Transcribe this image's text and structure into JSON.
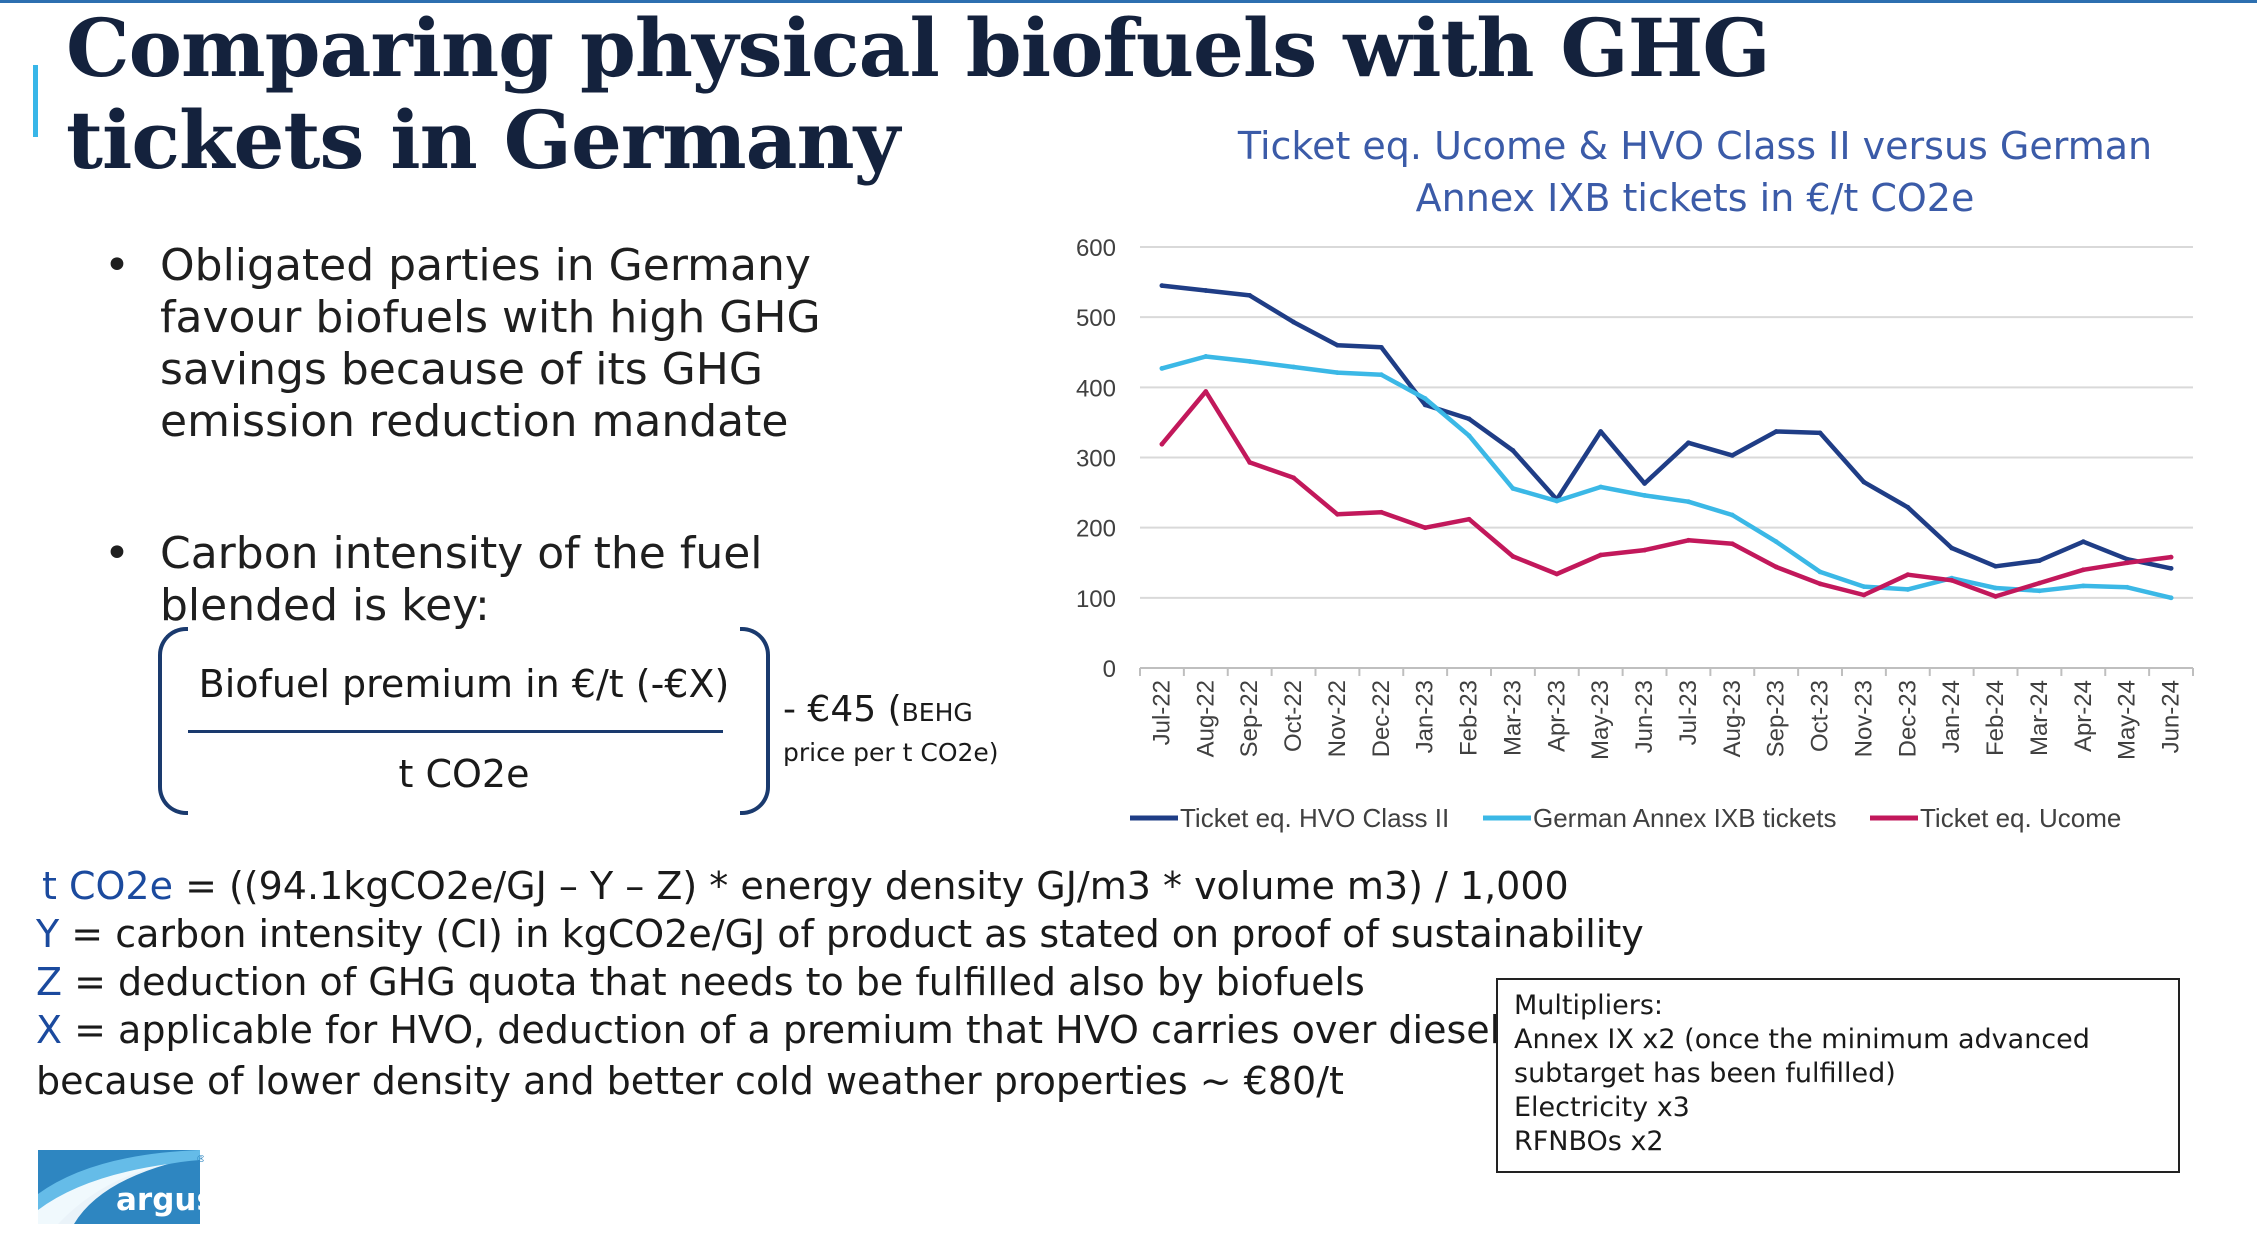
{
  "title": "Comparing physical biofuels with GHG tickets in Germany",
  "bullets": [
    "Obligated parties in Germany favour biofuels with high GHG savings because of its GHG emission reduction mandate",
    "Carbon intensity of the fuel blended is key:"
  ],
  "bullet_symbol": "•",
  "fraction": {
    "numerator": "Biofuel premium in €/t (-€X)",
    "denominator": "t CO2e",
    "minus_value": "- €45 (",
    "beh_label": "BEHG",
    "price_note": "price per t CO2e)"
  },
  "definitions": [
    {
      "var": "t CO2e",
      "text": " = ((94.1kgCO2e/GJ – Y – Z) * energy density GJ/m3 * volume m3) / 1,000"
    },
    {
      "var": "Y",
      "text": " = carbon intensity (CI) in kgCO2e/GJ of product as stated on proof of sustainability"
    },
    {
      "var": "Z",
      "text": " = deduction of GHG quota that needs to be fulfilled also by biofuels"
    },
    {
      "var": "X",
      "text": " = applicable for HVO, deduction of a premium that HVO carries over diesel"
    },
    {
      "var": "",
      "text": "because of lower density and better cold weather properties ~ €80/t"
    }
  ],
  "multipliers": [
    "Multipliers:",
    "Annex IX x2 (once the minimum advanced subtarget has been fulfilled)",
    "Electricity x3",
    "RFNBOs x2"
  ],
  "logo_text": "argus",
  "logo_mark": "®",
  "colors": {
    "title": "#14223d",
    "accent": "#38b6e8",
    "chart_title": "#3b5ba8",
    "hvo": "#1f3d86",
    "annex": "#3bb8e6",
    "ucome": "#c2185b"
  },
  "chart_data": {
    "type": "line",
    "title": "Ticket eq. Ucome & HVO Class II versus German Annex IXB tickets in €/t CO2e",
    "categories": [
      "Jul-22",
      "Aug-22",
      "Sep-22",
      "Oct-22",
      "Nov-22",
      "Dec-22",
      "Jan-23",
      "Feb-23",
      "Mar-23",
      "Apr-23",
      "May-23",
      "Jun-23",
      "Jul-23",
      "Aug-23",
      "Sep-23",
      "Oct-23",
      "Nov-23",
      "Dec-23",
      "Jan-24",
      "Feb-24",
      "Mar-24",
      "Apr-24",
      "May-24",
      "Jun-24"
    ],
    "yticks": [
      "600",
      "500",
      "400",
      "300",
      "200",
      "100",
      "0"
    ],
    "ylim": [
      0,
      600
    ],
    "grid": true,
    "legend_position": "bottom",
    "series": [
      {
        "name": "Ticket eq. HVO Class II",
        "color": "#1f3d86",
        "values": [
          545,
          538,
          531,
          493,
          460,
          457,
          375,
          355,
          310,
          240,
          337,
          263,
          321,
          303,
          337,
          335,
          265,
          229,
          171,
          145,
          153,
          180,
          155,
          142
        ]
      },
      {
        "name": "German Annex IXB tickets",
        "color": "#3bb8e6",
        "values": [
          427,
          444,
          437,
          429,
          421,
          418,
          384,
          331,
          256,
          238,
          258,
          246,
          237,
          218,
          180,
          137,
          116,
          112,
          128,
          114,
          110,
          117,
          115,
          100
        ]
      },
      {
        "name": "Ticket eq. Ucome",
        "color": "#c2185b",
        "values": [
          319,
          394,
          293,
          271,
          219,
          222,
          200,
          212,
          159,
          134,
          161,
          168,
          182,
          177,
          144,
          120,
          104,
          133,
          125,
          102,
          121,
          140,
          150,
          158
        ]
      }
    ]
  }
}
